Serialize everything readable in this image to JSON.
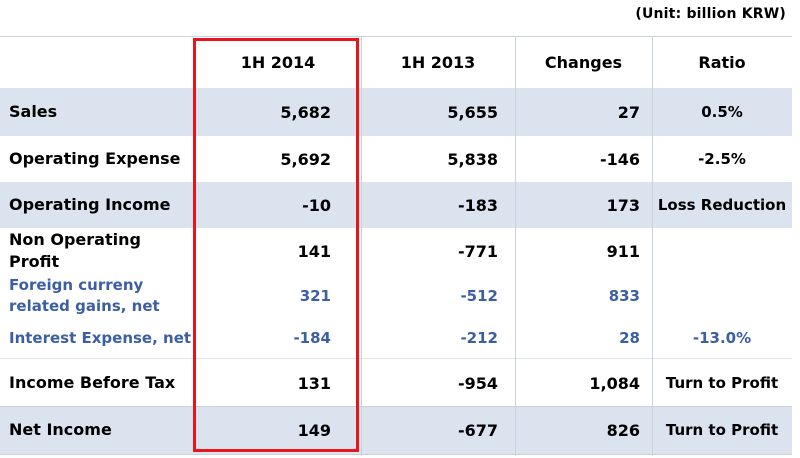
{
  "unit_note": "(Unit: billion KRW)",
  "columns": [
    "",
    "1H 2014",
    "1H 2013",
    "Changes",
    "Ratio"
  ],
  "rows": [
    {
      "label": "Sales",
      "h2014": "5,682",
      "h2013": "5,655",
      "changes": "27",
      "ratio": "0.5%",
      "style": "bold",
      "shaded": true
    },
    {
      "label": "Operating Expense",
      "h2014": "5,692",
      "h2013": "5,838",
      "changes": "-146",
      "ratio": "-2.5%",
      "style": "bold",
      "shaded": false
    },
    {
      "label": "Operating Income",
      "h2014": "-10",
      "h2013": "-183",
      "changes": "173",
      "ratio": "Loss Reduction",
      "style": "bold",
      "shaded": true
    },
    {
      "label": "Non Operating Profit",
      "h2014": "141",
      "h2013": "-771",
      "changes": "911",
      "ratio": "",
      "style": "bold",
      "shaded": false
    },
    {
      "label": "Foreign curreny related gains, net",
      "h2014": "321",
      "h2013": "-512",
      "changes": "833",
      "ratio": "",
      "style": "blue",
      "shaded": false
    },
    {
      "label": "Interest Expense, net",
      "h2014": "-184",
      "h2013": "-212",
      "changes": "28",
      "ratio": "-13.0%",
      "style": "blue",
      "shaded": false
    },
    {
      "label": "Income Before Tax",
      "h2014": "131",
      "h2013": "-954",
      "changes": "1,084",
      "ratio": "Turn to Profit",
      "style": "bold",
      "shaded": false
    },
    {
      "label": "Net Income",
      "h2014": "149",
      "h2013": "-677",
      "changes": "826",
      "ratio": "Turn to Profit",
      "style": "bold",
      "shaded": true
    }
  ],
  "colors": {
    "shade": "#dbe3ef",
    "highlight_border": "#e8141a",
    "sub_item_text": "#3c5fa3"
  }
}
